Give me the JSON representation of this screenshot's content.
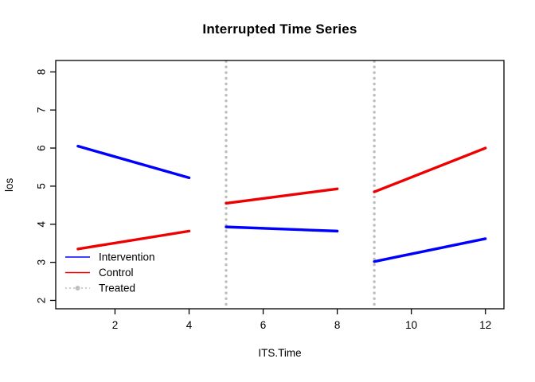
{
  "chart_data": {
    "type": "line",
    "title": "Interrupted Time Series",
    "xlabel": "ITS.Time",
    "ylabel": "los",
    "xlim": [
      0.4,
      12.5
    ],
    "ylim": [
      1.78,
      8.3
    ],
    "x_ticks": [
      2,
      4,
      6,
      8,
      10,
      12
    ],
    "y_ticks": [
      2,
      3,
      4,
      5,
      6,
      7,
      8
    ],
    "grid": false,
    "box": true,
    "colors": {
      "intervention": "#0000ff",
      "control": "#ee0000",
      "treated": "#bebebe",
      "frame": "#000000"
    },
    "series": [
      {
        "name": "Intervention",
        "color": "#0000ff",
        "kind": "segments",
        "segments": [
          {
            "x": [
              1,
              4
            ],
            "y": [
              6.05,
              5.22
            ]
          },
          {
            "x": [
              5,
              8
            ],
            "y": [
              3.93,
              3.82
            ]
          },
          {
            "x": [
              9,
              12
            ],
            "y": [
              3.02,
              3.62
            ]
          }
        ]
      },
      {
        "name": "Control",
        "color": "#ee0000",
        "kind": "segments",
        "segments": [
          {
            "x": [
              1,
              4
            ],
            "y": [
              3.35,
              3.82
            ]
          },
          {
            "x": [
              5,
              8
            ],
            "y": [
              4.55,
              4.93
            ]
          },
          {
            "x": [
              9,
              12
            ],
            "y": [
              4.85,
              6.0
            ]
          }
        ]
      },
      {
        "name": "Treated",
        "color": "#bebebe",
        "kind": "vlines",
        "style": "dotted",
        "x": [
          5,
          9
        ]
      }
    ],
    "legend": {
      "position": "bottom-left",
      "entries": [
        {
          "label": "Intervention",
          "color": "#0000ff",
          "sample": "solid-line"
        },
        {
          "label": "Control",
          "color": "#ee0000",
          "sample": "solid-line"
        },
        {
          "label": "Treated",
          "color": "#bebebe",
          "sample": "dotted-line-with-point"
        }
      ]
    }
  }
}
